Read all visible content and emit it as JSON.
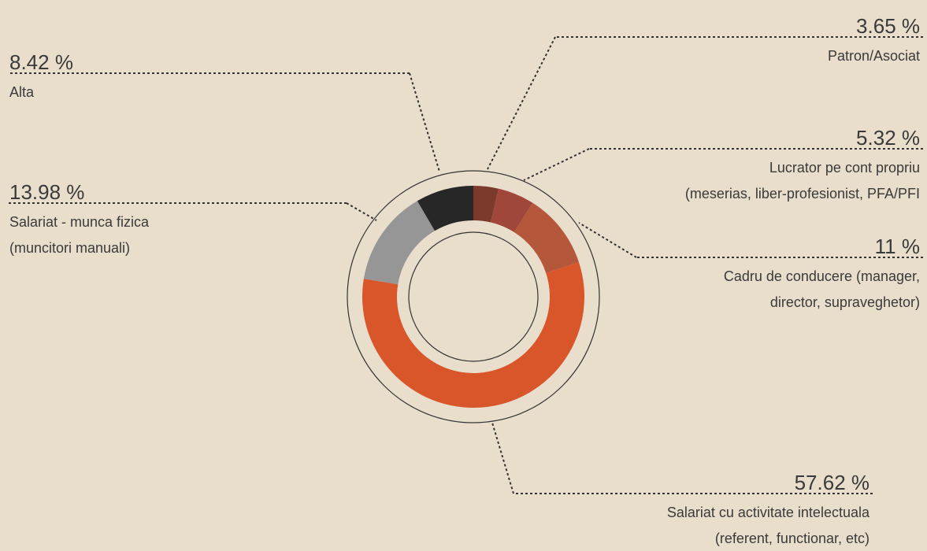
{
  "chart_data": {
    "type": "donut",
    "categories": [
      [
        "Patron/Asociat"
      ],
      [
        "Lucrator pe cont propriu",
        "(meserias, liber-profesionist, PFA/PFI"
      ],
      [
        "Cadru de conducere (manager,",
        "director, supraveghetor)"
      ],
      [
        "Salariat cu activitate intelectuala",
        "(referent, functionar, etc)"
      ],
      [
        "Salariat - munca fizica",
        "(muncitori manuali)"
      ],
      [
        "Alta"
      ]
    ],
    "values": [
      3.65,
      5.32,
      11,
      57.62,
      13.98,
      8.42
    ],
    "value_labels": [
      "3.65 %",
      "5.32 %",
      "11 %",
      "57.62 %",
      "13.98 %",
      "8.42 %"
    ],
    "colors": [
      "#7b3a2b",
      "#a1463a",
      "#b5573a",
      "#d9552a",
      "#969696",
      "#272727"
    ]
  }
}
